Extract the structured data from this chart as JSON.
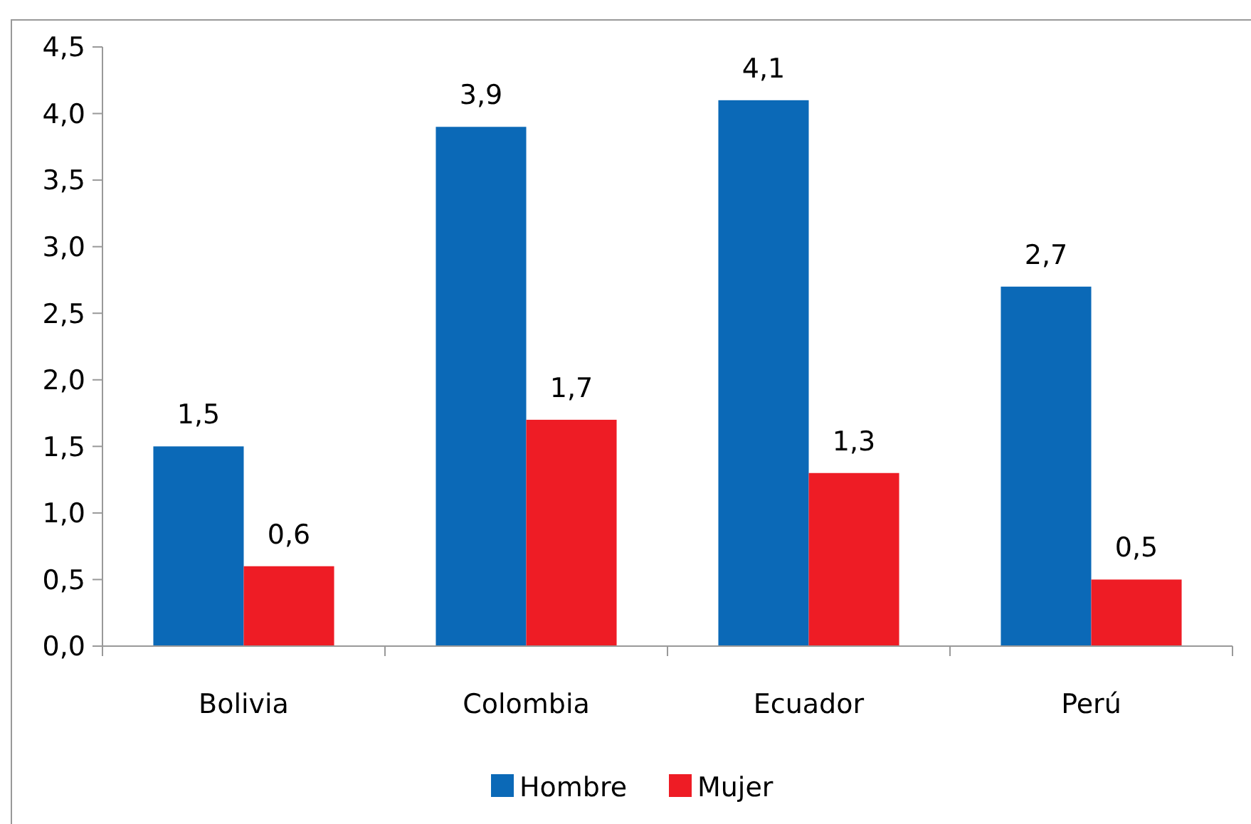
{
  "chart_data": {
    "type": "bar",
    "categories": [
      "Bolivia",
      "Colombia",
      "Ecuador",
      "Perú"
    ],
    "series": [
      {
        "name": "Hombre",
        "color": "#0b69b7",
        "values": [
          1.5,
          3.9,
          4.1,
          2.7
        ],
        "value_labels": [
          "1,5",
          "3,9",
          "4,1",
          "2,7"
        ]
      },
      {
        "name": "Mujer",
        "color": "#ee1c25",
        "values": [
          0.6,
          1.7,
          1.3,
          0.5
        ],
        "value_labels": [
          "0,6",
          "1,7",
          "1,3",
          "0,5"
        ]
      }
    ],
    "ylim": [
      0,
      4.5
    ],
    "yticks": [
      {
        "value": 0,
        "label": "0,0"
      },
      {
        "value": 0.5,
        "label": "0,5"
      },
      {
        "value": 1,
        "label": "1,0"
      },
      {
        "value": 1.5,
        "label": "1,5"
      },
      {
        "value": 2,
        "label": "2,0"
      },
      {
        "value": 2.5,
        "label": "2,5"
      },
      {
        "value": 3,
        "label": "3,0"
      },
      {
        "value": 3.5,
        "label": "3,5"
      },
      {
        "value": 4,
        "label": "4,0"
      },
      {
        "value": 4.5,
        "label": "4,5"
      }
    ],
    "legend": "bottom",
    "grid": false
  }
}
